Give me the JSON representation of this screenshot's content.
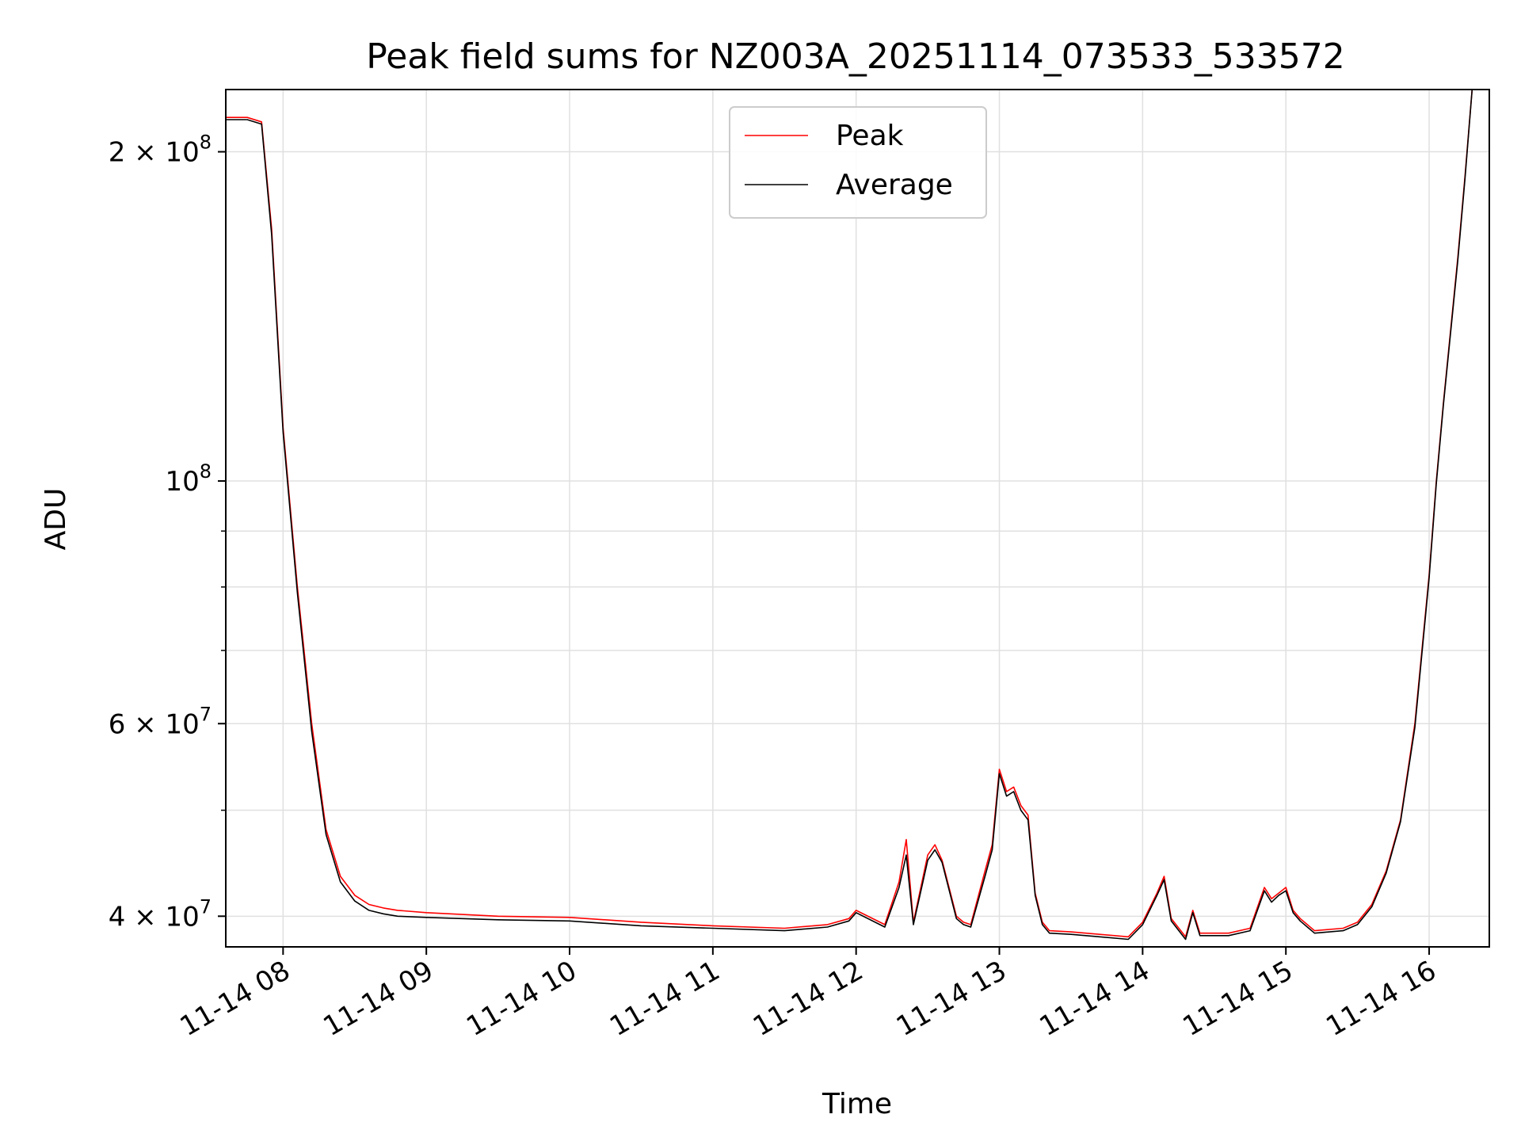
{
  "chart_data": {
    "type": "line",
    "title": "Peak field sums for NZ003A_20251114_073533_533572",
    "xlabel": "Time",
    "ylabel": "ADU",
    "yscale": "log",
    "grid": true,
    "x_unit": "hours since 11-14 00:00",
    "xlim": [
      7.6,
      16.42
    ],
    "ylim": [
      37500000,
      228000000
    ],
    "x_ticks": [
      {
        "value": 8,
        "label": "11-14 08"
      },
      {
        "value": 9,
        "label": "11-14 09"
      },
      {
        "value": 10,
        "label": "11-14 10"
      },
      {
        "value": 11,
        "label": "11-14 11"
      },
      {
        "value": 12,
        "label": "11-14 12"
      },
      {
        "value": 13,
        "label": "11-14 13"
      },
      {
        "value": 14,
        "label": "11-14 14"
      },
      {
        "value": 15,
        "label": "11-14 15"
      },
      {
        "value": 16,
        "label": "11-14 16"
      }
    ],
    "y_ticks": [
      {
        "value": 40000000,
        "base": "4 × 10",
        "exp": "7"
      },
      {
        "value": 60000000,
        "base": "6 × 10",
        "exp": "7"
      },
      {
        "value": 100000000,
        "base": "10",
        "exp": "8"
      },
      {
        "value": 200000000,
        "base": "2 × 10",
        "exp": "8"
      }
    ],
    "y_minor_ticks": [
      50000000,
      70000000,
      80000000,
      90000000
    ],
    "legend": {
      "position": "upper-center"
    },
    "series": [
      {
        "name": "Peak",
        "color": "#ff0000",
        "x": [
          7.6,
          7.75,
          7.85,
          7.92,
          8.0,
          8.1,
          8.2,
          8.3,
          8.4,
          8.5,
          8.6,
          8.7,
          8.8,
          9.0,
          9.5,
          10.0,
          10.5,
          11.0,
          11.5,
          11.8,
          11.95,
          12.0,
          12.2,
          12.3,
          12.35,
          12.4,
          12.5,
          12.55,
          12.6,
          12.7,
          12.75,
          12.8,
          12.9,
          12.95,
          13.0,
          13.05,
          13.1,
          13.15,
          13.2,
          13.25,
          13.3,
          13.35,
          13.5,
          13.7,
          13.9,
          14.0,
          14.1,
          14.15,
          14.2,
          14.3,
          14.35,
          14.4,
          14.6,
          14.75,
          14.85,
          14.9,
          14.95,
          15.0,
          15.05,
          15.1,
          15.2,
          15.4,
          15.5,
          15.6,
          15.7,
          15.8,
          15.9,
          16.0,
          16.05,
          16.1,
          16.2,
          16.25,
          16.3
        ],
        "y": [
          215000000,
          215000000,
          213000000,
          170000000,
          112000000,
          80000000,
          60000000,
          48000000,
          43500000,
          41800000,
          41000000,
          40700000,
          40500000,
          40300000,
          40000000,
          39900000,
          39500000,
          39200000,
          39000000,
          39300000,
          39800000,
          40500000,
          39300000,
          43000000,
          47000000,
          39500000,
          45500000,
          46500000,
          45000000,
          40000000,
          39500000,
          39300000,
          44000000,
          46500000,
          54500000,
          52000000,
          52500000,
          50500000,
          49500000,
          42000000,
          39500000,
          38800000,
          38700000,
          38500000,
          38300000,
          39500000,
          42000000,
          43500000,
          39800000,
          38300000,
          40500000,
          38600000,
          38600000,
          39000000,
          42500000,
          41500000,
          42000000,
          42500000,
          40500000,
          39800000,
          38800000,
          39000000,
          39500000,
          41000000,
          44000000,
          49000000,
          60000000,
          82000000,
          100000000,
          118000000,
          160000000,
          190000000,
          228000000
        ]
      },
      {
        "name": "Average",
        "color": "#000000",
        "x": [
          7.6,
          7.75,
          7.85,
          7.92,
          8.0,
          8.1,
          8.2,
          8.3,
          8.4,
          8.5,
          8.6,
          8.7,
          8.8,
          9.0,
          9.5,
          10.0,
          10.5,
          11.0,
          11.5,
          11.8,
          11.95,
          12.0,
          12.2,
          12.3,
          12.35,
          12.4,
          12.5,
          12.55,
          12.6,
          12.7,
          12.75,
          12.8,
          12.9,
          12.95,
          13.0,
          13.05,
          13.1,
          13.15,
          13.2,
          13.25,
          13.3,
          13.35,
          13.5,
          13.7,
          13.9,
          14.0,
          14.1,
          14.15,
          14.2,
          14.3,
          14.35,
          14.4,
          14.6,
          14.75,
          14.85,
          14.9,
          14.95,
          15.0,
          15.05,
          15.1,
          15.2,
          15.4,
          15.5,
          15.6,
          15.7,
          15.8,
          15.9,
          16.0,
          16.05,
          16.1,
          16.2,
          16.25,
          16.3
        ],
        "y": [
          214000000,
          214000000,
          212000000,
          168000000,
          111000000,
          79000000,
          59000000,
          47500000,
          43000000,
          41300000,
          40500000,
          40200000,
          40000000,
          39900000,
          39700000,
          39600000,
          39200000,
          39000000,
          38800000,
          39100000,
          39600000,
          40300000,
          39100000,
          42500000,
          45500000,
          39300000,
          45000000,
          46000000,
          44800000,
          39800000,
          39300000,
          39100000,
          43500000,
          46000000,
          54000000,
          51500000,
          52000000,
          50000000,
          49000000,
          41800000,
          39300000,
          38600000,
          38500000,
          38300000,
          38100000,
          39300000,
          41800000,
          43200000,
          39600000,
          38100000,
          40300000,
          38400000,
          38400000,
          38800000,
          42200000,
          41200000,
          41800000,
          42200000,
          40300000,
          39600000,
          38600000,
          38800000,
          39300000,
          40800000,
          43800000,
          48800000,
          59500000,
          81500000,
          99500000,
          117500000,
          159000000,
          189000000,
          228000000
        ]
      }
    ]
  }
}
